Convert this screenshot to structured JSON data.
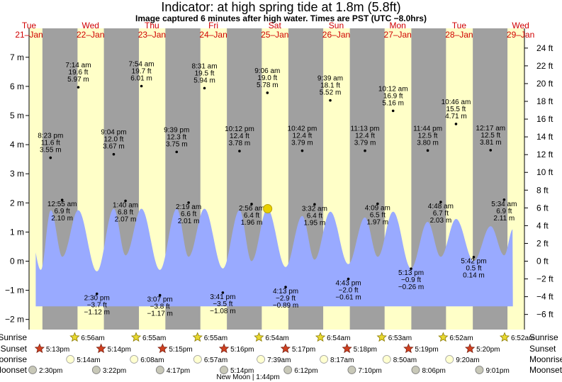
{
  "title": "Indicator: at high  spring tide at 1.8m (5.8ft)",
  "subtitle": "Image captured 6 minutes after high water. Times are PST (UTC −8.0hrs)",
  "chart_data": {
    "type": "area",
    "ylabel_left_unit": "m",
    "ylabel_right_unit": "ft",
    "ylim_m": [
      -2.3,
      7.4
    ],
    "yticks_m": [
      "7 m",
      "6 m",
      "5 m",
      "4 m",
      "3 m",
      "2 m",
      "1 m",
      "0 m",
      "−1 m",
      "−2 m"
    ],
    "yticks_m_values": [
      7,
      6,
      5,
      4,
      3,
      2,
      1,
      0,
      -1,
      -2
    ],
    "yticks_ft": [
      "24 ft",
      "22 ft",
      "20 ft",
      "18 ft",
      "16 ft",
      "14 ft",
      "12 ft",
      "10 ft",
      "8 ft",
      "6 ft",
      "4 ft",
      "2 ft",
      "0 ft",
      "−2 ft",
      "−4 ft",
      "−6 ft"
    ],
    "yticks_ft_values": [
      24,
      22,
      20,
      18,
      16,
      14,
      12,
      10,
      8,
      6,
      4,
      2,
      0,
      -2,
      -4,
      -6
    ],
    "days": [
      {
        "name": "Tue",
        "date": "21–Jan"
      },
      {
        "name": "Wed",
        "date": "22–Jan"
      },
      {
        "name": "Thu",
        "date": "23–Jan"
      },
      {
        "name": "Fri",
        "date": "24–Jan"
      },
      {
        "name": "Sat",
        "date": "25–Jan"
      },
      {
        "name": "Sun",
        "date": "26–Jan"
      },
      {
        "name": "Mon",
        "date": "27–Jan"
      },
      {
        "name": "Tue",
        "date": "28–Jan"
      },
      {
        "name": "Wed",
        "date": "29–Jan"
      }
    ],
    "tides": [
      {
        "type": "high",
        "time": "8:23 pm",
        "ft": "11.6 ft",
        "m": "3.55 m",
        "hour": 20.38,
        "value": 3.55
      },
      {
        "type": "low",
        "time": "12:55 am",
        "ft": "6.9 ft",
        "m": "2.10 m",
        "hour": 24.92,
        "value": 2.1
      },
      {
        "type": "high",
        "time": "7:14 am",
        "ft": "19.6 ft",
        "m": "5.97 m",
        "hour": 31.23,
        "value": 5.97
      },
      {
        "type": "low",
        "time": "2:30 pm",
        "ft": "−3.7 ft",
        "m": "−1.12 m",
        "hour": 38.5,
        "value": -1.12
      },
      {
        "type": "high",
        "time": "9:04 pm",
        "ft": "12.0 ft",
        "m": "3.67 m",
        "hour": 45.07,
        "value": 3.67
      },
      {
        "type": "low",
        "time": "1:40 am",
        "ft": "6.8 ft",
        "m": "2.07 m",
        "hour": 49.67,
        "value": 2.07
      },
      {
        "type": "high",
        "time": "7:54 am",
        "ft": "19.7 ft",
        "m": "6.01 m",
        "hour": 55.9,
        "value": 6.01
      },
      {
        "type": "low",
        "time": "3:07 pm",
        "ft": "−3.8 ft",
        "m": "−1.17 m",
        "hour": 63.12,
        "value": -1.17
      },
      {
        "type": "high",
        "time": "9:39 pm",
        "ft": "12.3 ft",
        "m": "3.75 m",
        "hour": 69.65,
        "value": 3.75
      },
      {
        "type": "low",
        "time": "2:19 am",
        "ft": "6.6 ft",
        "m": "2.01 m",
        "hour": 74.32,
        "value": 2.01
      },
      {
        "type": "high",
        "time": "8:31 am",
        "ft": "19.5 ft",
        "m": "5.94 m",
        "hour": 80.52,
        "value": 5.94
      },
      {
        "type": "low",
        "time": "3:41 pm",
        "ft": "−3.5 ft",
        "m": "−1.08 m",
        "hour": 87.68,
        "value": -1.08
      },
      {
        "type": "high",
        "time": "10:12 pm",
        "ft": "12.4 ft",
        "m": "3.78 m",
        "hour": 94.2,
        "value": 3.78
      },
      {
        "type": "low",
        "time": "2:56 am",
        "ft": "6.4 ft",
        "m": "1.96 m",
        "hour": 98.93,
        "value": 1.96
      },
      {
        "type": "high",
        "time": "9:06 am",
        "ft": "19.0 ft",
        "m": "5.78 m",
        "hour": 105.1,
        "value": 5.78
      },
      {
        "type": "low",
        "time": "4:13 pm",
        "ft": "−2.9 ft",
        "m": "−0.89 m",
        "hour": 112.22,
        "value": -0.89
      },
      {
        "type": "high",
        "time": "10:42 pm",
        "ft": "12.4 ft",
        "m": "3.79 m",
        "hour": 118.7,
        "value": 3.79
      },
      {
        "type": "low",
        "time": "3:32 am",
        "ft": "6.4 ft",
        "m": "1.95 m",
        "hour": 123.53,
        "value": 1.95
      },
      {
        "type": "high",
        "time": "9:39 am",
        "ft": "18.1 ft",
        "m": "5.52 m",
        "hour": 129.65,
        "value": 5.52
      },
      {
        "type": "low",
        "time": "4:43 pm",
        "ft": "−2.0 ft",
        "m": "−0.61 m",
        "hour": 136.72,
        "value": -0.61
      },
      {
        "type": "high",
        "time": "11:13 pm",
        "ft": "12.4 ft",
        "m": "3.79 m",
        "hour": 143.22,
        "value": 3.79
      },
      {
        "type": "low",
        "time": "4:09 am",
        "ft": "6.5 ft",
        "m": "1.97 m",
        "hour": 148.15,
        "value": 1.97
      },
      {
        "type": "high",
        "time": "10:12 am",
        "ft": "16.9 ft",
        "m": "5.16 m",
        "hour": 154.2,
        "value": 5.16
      },
      {
        "type": "low",
        "time": "5:13 pm",
        "ft": "−0.9 ft",
        "m": "−0.26 m",
        "hour": 161.22,
        "value": -0.26
      },
      {
        "type": "high",
        "time": "11:44 pm",
        "ft": "12.5 ft",
        "m": "3.80 m",
        "hour": 167.73,
        "value": 3.8
      },
      {
        "type": "low",
        "time": "4:48 am",
        "ft": "6.7 ft",
        "m": "2.03 m",
        "hour": 172.8,
        "value": 2.03
      },
      {
        "type": "high",
        "time": "10:46 am",
        "ft": "15.5 ft",
        "m": "4.71 m",
        "hour": 178.77,
        "value": 4.71
      },
      {
        "type": "low",
        "time": "5:42 pm",
        "ft": "0.5 ft",
        "m": "0.14 m",
        "hour": 185.7,
        "value": 0.14
      },
      {
        "type": "high",
        "time": "12:17 am",
        "ft": "12.5 ft",
        "m": "3.81 m",
        "hour": 192.28,
        "value": 3.81
      },
      {
        "type": "low",
        "time": "5:34 am",
        "ft": "6.9 ft",
        "m": "2.11 m",
        "hour": 197.57,
        "value": 2.11
      }
    ],
    "curve_extrema_hours": [
      12.0,
      16.6,
      20.5,
      25.0,
      31.2,
      38.5,
      45.1,
      49.7,
      55.9,
      63.1,
      69.7,
      74.3,
      80.5,
      87.7,
      94.2,
      98.9,
      105.1,
      112.2,
      118.7,
      123.5,
      129.7,
      136.7,
      143.2,
      148.2,
      154.2,
      161.2,
      167.7,
      172.8,
      178.8,
      185.7,
      192.3,
      197.6,
      201.0
    ],
    "curve_extrema_values": [
      1.2,
      -0.3,
      1.75,
      0.15,
      1.75,
      -0.35,
      1.8,
      0.2,
      1.8,
      -0.3,
      1.8,
      0.15,
      1.8,
      -0.25,
      1.75,
      0.0,
      1.8,
      -0.2,
      1.55,
      0.05,
      1.7,
      -0.1,
      1.5,
      0.15,
      1.7,
      -0.25,
      1.35,
      0.15,
      1.45,
      0.0,
      1.2,
      0.2,
      1.1
    ],
    "indicator": {
      "hour": 105.2,
      "value": 1.8
    },
    "ribbon_rows": [
      "Sunrise",
      "Sunset",
      "Moonrise",
      "Moonset"
    ],
    "events": {
      "sunrise": [
        {
          "time": "6:56am",
          "hour": 30.93
        },
        {
          "time": "6:55am",
          "hour": 54.92
        },
        {
          "time": "6:55am",
          "hour": 78.92
        },
        {
          "time": "6:54am",
          "hour": 102.9
        },
        {
          "time": "6:54am",
          "hour": 126.9
        },
        {
          "time": "6:53am",
          "hour": 150.88
        },
        {
          "time": "6:52am",
          "hour": 174.87
        },
        {
          "time": "6:52am",
          "hour": 198.87
        }
      ],
      "sunset": [
        {
          "time": "5:13pm",
          "hour": 17.22
        },
        {
          "time": "5:14pm",
          "hour": 41.23
        },
        {
          "time": "5:15pm",
          "hour": 65.25
        },
        {
          "time": "5:16pm",
          "hour": 89.27
        },
        {
          "time": "5:17pm",
          "hour": 113.28
        },
        {
          "time": "5:18pm",
          "hour": 137.3
        },
        {
          "time": "5:19pm",
          "hour": 161.32
        },
        {
          "time": "5:20pm",
          "hour": 185.33
        }
      ],
      "moonrise": [
        {
          "time": "5:14am",
          "hour": 29.23
        },
        {
          "time": "6:08am",
          "hour": 54.13
        },
        {
          "time": "6:57am",
          "hour": 78.95
        },
        {
          "time": "7:39am",
          "hour": 103.65
        },
        {
          "time": "8:17am",
          "hour": 128.28
        },
        {
          "time": "8:50am",
          "hour": 152.83
        },
        {
          "time": "9:20am",
          "hour": 177.33
        }
      ],
      "moonset": [
        {
          "time": "2:30pm",
          "hour": 14.5
        },
        {
          "time": "3:22pm",
          "hour": 39.37
        },
        {
          "time": "4:17pm",
          "hour": 64.28
        },
        {
          "time": "5:14pm",
          "hour": 89.23
        },
        {
          "time": "6:12pm",
          "hour": 114.2
        },
        {
          "time": "7:10pm",
          "hour": 139.17
        },
        {
          "time": "8:06pm",
          "hour": 164.1
        },
        {
          "time": "9:01pm",
          "hour": 189.02
        }
      ]
    },
    "new_moon": "New Moon | 1:44pm",
    "grid": false
  },
  "colors": {
    "night": "#a0a0a0",
    "day": "#ffffc8",
    "water": "#99aaff",
    "day_name": "#d00000",
    "sun": "#e8d830",
    "sunset_star": "#d04020",
    "moon": "#ffffd0",
    "moon_set": "#c8c8b8",
    "indicator": "#e8d000"
  }
}
